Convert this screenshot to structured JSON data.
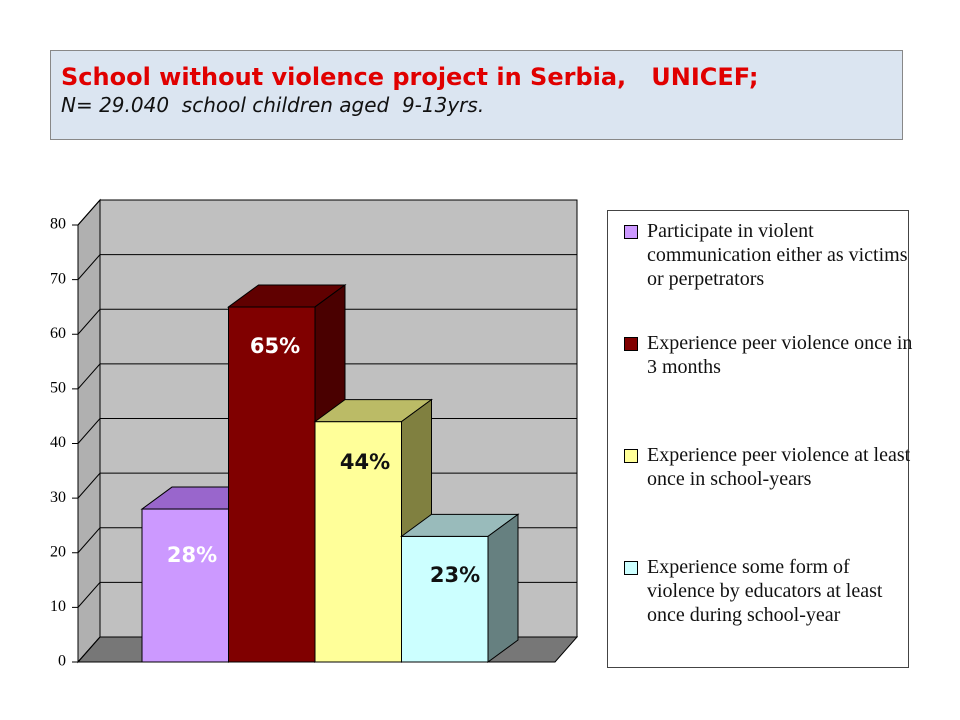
{
  "chart_data": {
    "type": "bar3d",
    "title": "School without violence project in Serbia,   UNICEF;",
    "subtitle": "N= 29.040  school children aged  9-13yrs.",
    "ylim": [
      0,
      80
    ],
    "yticks": [
      0,
      10,
      20,
      30,
      40,
      50,
      60,
      70,
      80
    ],
    "grid": true,
    "legend": "right",
    "series": [
      {
        "name": "Participate in violent communication either as victims or perpetrators",
        "color": "#cc99ff",
        "top": "#9966cc",
        "side": "#8055b0",
        "values": [
          28
        ],
        "value_labels": [
          "28%"
        ],
        "label_color": "#ffffff"
      },
      {
        "name": "Experience peer violence once in 3 months",
        "color": "#800000",
        "top": "#600000",
        "side": "#4a0000",
        "values": [
          65
        ],
        "value_labels": [
          "65%"
        ],
        "label_color": "#ffffff"
      },
      {
        "name": "Experience peer violence at least once in school-years",
        "color": "#ffff99",
        "top": "#bbbb66",
        "side": "#808040",
        "values": [
          44
        ],
        "value_labels": [
          "44%"
        ],
        "label_color": "#111111"
      },
      {
        "name": "Experience some form of violence by educators at least once during school-year",
        "color": "#ccffff",
        "top": "#99bbbb",
        "side": "#668080",
        "values": [
          23
        ],
        "value_labels": [
          "23%"
        ],
        "label_color": "#111111"
      }
    ]
  }
}
